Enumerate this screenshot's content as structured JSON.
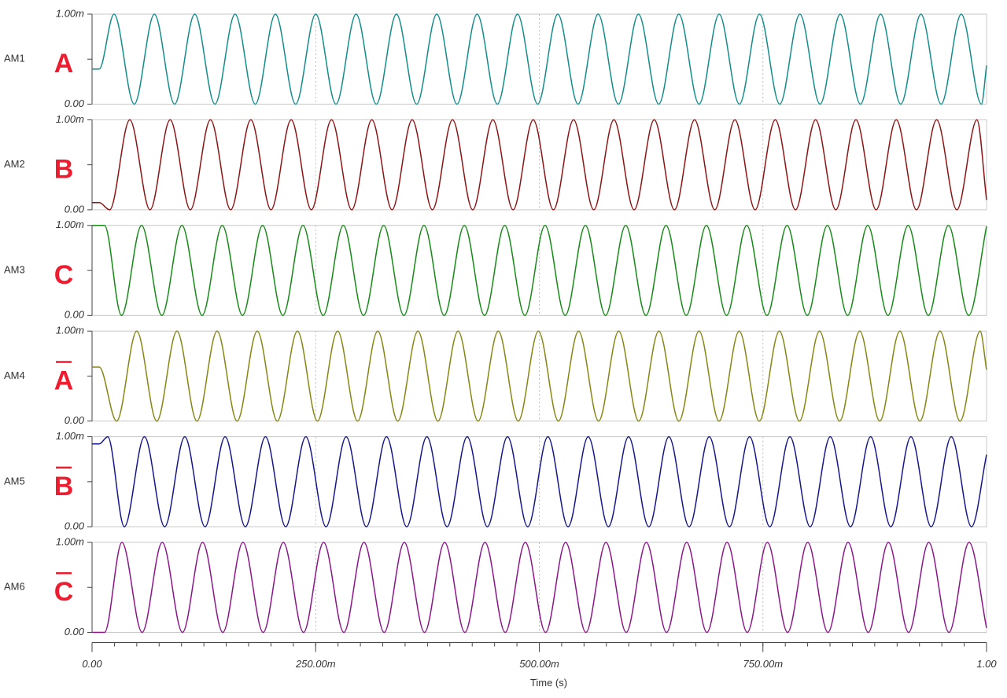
{
  "chart_data": [
    {
      "type": "line",
      "xlim": [
        0,
        1
      ],
      "ylim": [
        0,
        0.001
      ],
      "yticks": [
        {
          "value": 0,
          "label": "0.00"
        },
        {
          "value": 0.001,
          "label": "1.00m"
        }
      ],
      "annotation": "A",
      "annotation_negated": false,
      "series": [
        {
          "name": "AM1",
          "color": "#138c8c",
          "x": [
            0,
            0.008,
            0.0246,
            0.0472,
            0.0697,
            0.0923,
            0.1148,
            0.1374,
            0.1599,
            0.1825,
            0.205,
            0.2276,
            0.2501,
            0.2727,
            0.2952,
            0.3178,
            0.3403,
            0.3629,
            0.3854,
            0.408,
            0.4305,
            0.4531,
            0.4756,
            0.4982,
            0.5207,
            0.5433,
            0.5658,
            0.5884,
            0.6109,
            0.6335,
            0.656,
            0.6786,
            0.7011,
            0.7237,
            0.7462,
            0.7688,
            0.7913,
            0.8139,
            0.8364,
            0.859,
            0.8815,
            0.9041,
            0.9266,
            0.9492,
            0.9717,
            0.9943,
            1
          ],
          "values": [
            0.00039,
            0.00039,
            0.001,
            0,
            0.001,
            0,
            0.001,
            0,
            0.001,
            0,
            0.001,
            0,
            0.001,
            0,
            0.001,
            0,
            0.001,
            0,
            0.001,
            0,
            0.001,
            0,
            0.001,
            0,
            0.001,
            0,
            0.001,
            0,
            0.001,
            0,
            0.001,
            0,
            0.001,
            0,
            0.001,
            0,
            0.001,
            0,
            0.001,
            0,
            0.001,
            0,
            0.001,
            0,
            0.001,
            0,
            0.00043
          ]
        }
      ]
    },
    {
      "type": "line",
      "xlim": [
        0,
        1
      ],
      "ylim": [
        0,
        0.001
      ],
      "yticks": [
        {
          "value": 0,
          "label": "0.00"
        },
        {
          "value": 0.001,
          "label": "1.00m"
        }
      ],
      "annotation": "B",
      "annotation_negated": false,
      "series": [
        {
          "name": "AM2",
          "color": "#8b1414",
          "x": [
            0,
            0.008,
            0.0197,
            0.0422,
            0.0648,
            0.0873,
            0.1099,
            0.1324,
            0.155,
            0.1775,
            0.2001,
            0.2226,
            0.2452,
            0.2677,
            0.2903,
            0.3128,
            0.3354,
            0.3579,
            0.3805,
            0.403,
            0.4256,
            0.4481,
            0.4707,
            0.4932,
            0.5158,
            0.5383,
            0.5609,
            0.5834,
            0.606,
            0.6285,
            0.6511,
            0.6736,
            0.6962,
            0.7187,
            0.7413,
            0.7638,
            0.7864,
            0.8089,
            0.8315,
            0.854,
            0.8766,
            0.8991,
            0.9217,
            0.9442,
            0.9668,
            0.9893,
            1
          ],
          "values": [
            8e-05,
            8e-05,
            0,
            0.001,
            0,
            0.001,
            0,
            0.001,
            0,
            0.001,
            0,
            0.001,
            0,
            0.001,
            0,
            0.001,
            0,
            0.001,
            0,
            0.001,
            0,
            0.001,
            0,
            0.001,
            0,
            0.001,
            0,
            0.001,
            0,
            0.001,
            0,
            0.001,
            0,
            0.001,
            0,
            0.001,
            0,
            0.001,
            0,
            0.001,
            0,
            0.001,
            0,
            0.001,
            0,
            0.001,
            0.00011
          ]
        }
      ]
    },
    {
      "type": "line",
      "xlim": [
        0,
        1
      ],
      "ylim": [
        0,
        0.001
      ],
      "yticks": [
        {
          "value": 0,
          "label": "0.00"
        },
        {
          "value": 0.001,
          "label": "1.00m"
        }
      ],
      "annotation": "C",
      "annotation_negated": false,
      "series": [
        {
          "name": "AM3",
          "color": "#168a16",
          "x": [
            0,
            0.014,
            0.0329,
            0.0554,
            0.078,
            0.1005,
            0.1231,
            0.1456,
            0.1682,
            0.1907,
            0.2133,
            0.2358,
            0.2584,
            0.2809,
            0.3035,
            0.326,
            0.3486,
            0.3711,
            0.3937,
            0.4162,
            0.4388,
            0.4613,
            0.4839,
            0.5064,
            0.529,
            0.5515,
            0.5741,
            0.5966,
            0.6192,
            0.6417,
            0.6643,
            0.6868,
            0.7094,
            0.7319,
            0.7545,
            0.777,
            0.7996,
            0.8221,
            0.8447,
            0.8672,
            0.8898,
            0.9123,
            0.9349,
            0.9574,
            0.98,
            1
          ],
          "values": [
            0.001,
            0.001,
            0,
            0.001,
            0,
            0.001,
            0,
            0.001,
            0,
            0.001,
            0,
            0.001,
            0,
            0.001,
            0,
            0.001,
            0,
            0.001,
            0,
            0.001,
            0,
            0.001,
            0,
            0.001,
            0,
            0.001,
            0,
            0.001,
            0,
            0.001,
            0,
            0.001,
            0,
            0.001,
            0,
            0.001,
            0,
            0.001,
            0,
            0.001,
            0,
            0.001,
            0,
            0.001,
            0,
            0.00099
          ]
        }
      ]
    },
    {
      "type": "line",
      "xlim": [
        0,
        1
      ],
      "ylim": [
        0,
        0.001
      ],
      "yticks": [
        {
          "value": 0,
          "label": "0.00"
        },
        {
          "value": 0.001,
          "label": "1.00m"
        }
      ],
      "annotation": "A",
      "annotation_negated": true,
      "series": [
        {
          "name": "AM4",
          "color": "#868612",
          "x": [
            0,
            0.008,
            0.0275,
            0.05,
            0.0724,
            0.0949,
            0.1173,
            0.1398,
            0.1622,
            0.1847,
            0.2071,
            0.2296,
            0.252,
            0.2745,
            0.2969,
            0.3194,
            0.3418,
            0.3643,
            0.3867,
            0.4092,
            0.4316,
            0.4541,
            0.4765,
            0.499,
            0.5214,
            0.5439,
            0.5663,
            0.5888,
            0.6112,
            0.6337,
            0.6561,
            0.6786,
            0.701,
            0.7235,
            0.7459,
            0.7684,
            0.7908,
            0.8133,
            0.8357,
            0.8582,
            0.8806,
            0.9031,
            0.9255,
            0.948,
            0.9704,
            0.9929,
            1
          ],
          "values": [
            0.0006,
            0.0006,
            0,
            0.001,
            0,
            0.001,
            0,
            0.001,
            0,
            0.001,
            0,
            0.001,
            0,
            0.001,
            0,
            0.001,
            0,
            0.001,
            0,
            0.001,
            0,
            0.001,
            0,
            0.001,
            0,
            0.001,
            0,
            0.001,
            0,
            0.001,
            0,
            0.001,
            0,
            0.001,
            0,
            0.001,
            0,
            0.001,
            0,
            0.001,
            0,
            0.001,
            0,
            0.001,
            0,
            0.001,
            0.00057
          ]
        }
      ]
    },
    {
      "type": "line",
      "xlim": [
        0,
        1
      ],
      "ylim": [
        0,
        0.001
      ],
      "yticks": [
        {
          "value": 0,
          "label": "0.00"
        },
        {
          "value": 0.001,
          "label": "1.00m"
        }
      ],
      "annotation": "B",
      "annotation_negated": true,
      "series": [
        {
          "name": "AM5",
          "color": "#16168a",
          "x": [
            0,
            0.008,
            0.0176,
            0.0361,
            0.0586,
            0.0812,
            0.1037,
            0.1263,
            0.1488,
            0.1714,
            0.1939,
            0.2165,
            0.239,
            0.2616,
            0.2841,
            0.3067,
            0.3292,
            0.3518,
            0.3743,
            0.3969,
            0.4194,
            0.442,
            0.4645,
            0.4871,
            0.5096,
            0.5322,
            0.5547,
            0.5773,
            0.5998,
            0.6224,
            0.6449,
            0.6675,
            0.69,
            0.7126,
            0.7351,
            0.7577,
            0.7802,
            0.8028,
            0.8253,
            0.8479,
            0.8704,
            0.893,
            0.9155,
            0.9381,
            0.9606,
            0.9832,
            1
          ],
          "values": [
            0.00092,
            0.00092,
            0.001,
            0,
            0.001,
            0,
            0.001,
            0,
            0.001,
            0,
            0.001,
            0,
            0.001,
            0,
            0.001,
            0,
            0.001,
            0,
            0.001,
            0,
            0.001,
            0,
            0.001,
            0,
            0.001,
            0,
            0.001,
            0,
            0.001,
            0,
            0.001,
            0,
            0.001,
            0,
            0.001,
            0,
            0.001,
            0,
            0.001,
            0,
            0.001,
            0,
            0.001,
            0,
            0.001,
            0,
            0.0008
          ]
        }
      ]
    },
    {
      "type": "line",
      "xlim": [
        0,
        1
      ],
      "ylim": [
        0,
        0.001
      ],
      "yticks": [
        {
          "value": 0,
          "label": "0.00"
        },
        {
          "value": 0.001,
          "label": "1.00m"
        }
      ],
      "annotation": "C",
      "annotation_negated": true,
      "xticks": [
        {
          "value": 0,
          "label": "0.00"
        },
        {
          "value": 0.25,
          "label": "250.00m"
        },
        {
          "value": 0.5,
          "label": "500.00m"
        },
        {
          "value": 0.75,
          "label": "750.00m"
        },
        {
          "value": 1,
          "label": "1.00"
        }
      ],
      "xlabel": "Time (s)",
      "series": [
        {
          "name": "AM6",
          "color": "#8a168a",
          "x": [
            0,
            0.014,
            0.0334,
            0.056,
            0.0785,
            0.1011,
            0.1236,
            0.1462,
            0.1687,
            0.1913,
            0.2138,
            0.2364,
            0.2589,
            0.2815,
            0.304,
            0.3266,
            0.3491,
            0.3717,
            0.3942,
            0.4168,
            0.4393,
            0.4619,
            0.4844,
            0.507,
            0.5295,
            0.5521,
            0.5746,
            0.5972,
            0.6197,
            0.6423,
            0.6648,
            0.6874,
            0.7099,
            0.7325,
            0.755,
            0.7776,
            0.8001,
            0.8227,
            0.8452,
            0.8678,
            0.8903,
            0.9129,
            0.9354,
            0.958,
            0.9805,
            1
          ],
          "values": [
            0,
            0,
            0.001,
            0,
            0.001,
            0,
            0.001,
            0,
            0.001,
            0,
            0.001,
            0,
            0.001,
            0,
            0.001,
            0,
            0.001,
            0,
            0.001,
            0,
            0.001,
            0,
            0.001,
            0,
            0.001,
            0,
            0.001,
            0,
            0.001,
            0,
            0.001,
            0,
            0.001,
            0,
            0.001,
            0,
            0.001,
            0,
            0.001,
            0,
            0.001,
            0,
            0.001,
            0,
            0.001,
            5e-05
          ]
        }
      ]
    }
  ]
}
